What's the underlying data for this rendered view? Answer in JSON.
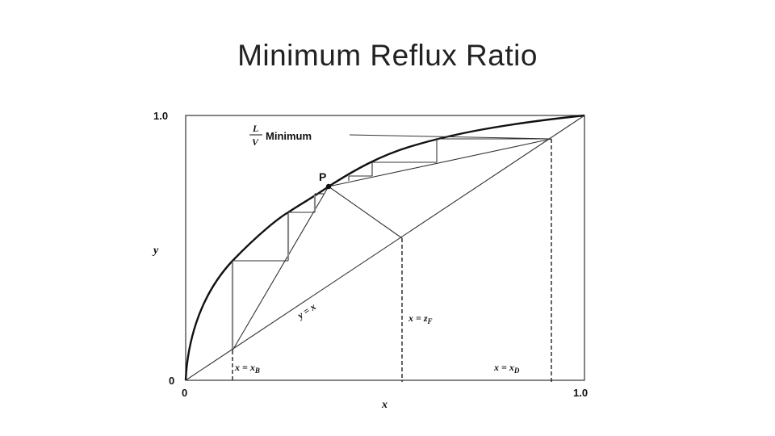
{
  "slide": {
    "title": "Minimum Reflux Ratio"
  },
  "axes": {
    "x_label": "x",
    "y_label": "y",
    "x_min_label": "0",
    "x_max_label": "1.0",
    "y_min_label": "0",
    "y_max_label": "1.0"
  },
  "annotations": {
    "min_ratio_num": "L",
    "min_ratio_den": "V",
    "min_ratio_text": "Minimum",
    "pinch_point": "P",
    "diagonal": "y = x",
    "x_bottoms_prefix": "x = x",
    "x_bottoms_sub": "B",
    "x_feed_prefix": "x = z",
    "x_feed_sub": "F",
    "x_distillate_prefix": "x = x",
    "x_distillate_sub": "D"
  }
}
